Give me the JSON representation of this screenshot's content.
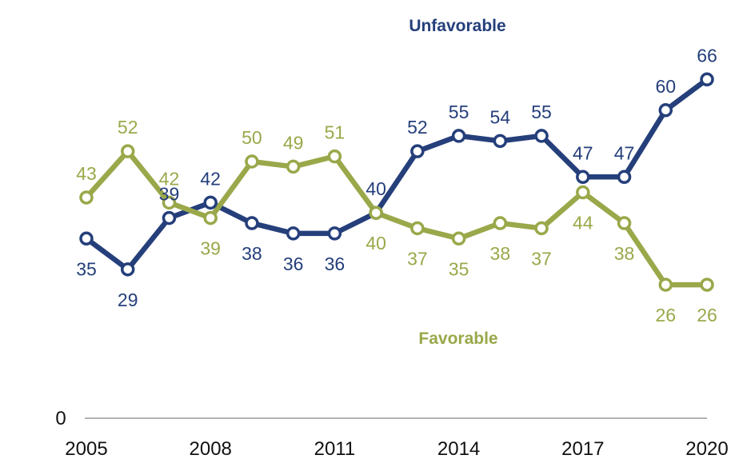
{
  "chart_data": {
    "type": "line",
    "x": [
      2005,
      2006,
      2007,
      2008,
      2009,
      2010,
      2011,
      2012,
      2013,
      2014,
      2015,
      2016,
      2017,
      2018,
      2019,
      2020
    ],
    "series": [
      {
        "name": "Unfavorable",
        "color": "#253f7b",
        "values": [
          35,
          29,
          39,
          42,
          38,
          36,
          36,
          40,
          52,
          55,
          54,
          55,
          47,
          47,
          60,
          66
        ]
      },
      {
        "name": "Favorable",
        "color": "#9aa84a",
        "values": [
          43,
          52,
          42,
          39,
          50,
          49,
          51,
          40,
          37,
          35,
          38,
          37,
          44,
          38,
          26,
          26
        ]
      }
    ],
    "xticks": [
      "2005",
      "2008",
      "2011",
      "2014",
      "2017",
      "2020"
    ],
    "yticks": [
      "0"
    ],
    "ylim": [
      0,
      70
    ],
    "xlabel": "",
    "ylabel": "",
    "grid": false,
    "legend": "inline"
  }
}
